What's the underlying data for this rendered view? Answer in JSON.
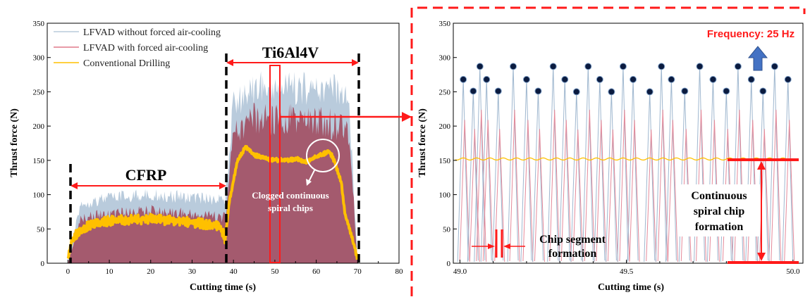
{
  "chart_data": [
    {
      "type": "line",
      "panel": "left",
      "xlabel": "Cutting time (s)",
      "ylabel": "Thrust force (N)",
      "xlim": [
        -5,
        80
      ],
      "ylim": [
        0,
        350
      ],
      "xticks": [
        "0",
        "10",
        "20",
        "30",
        "40",
        "50",
        "60",
        "70",
        "80"
      ],
      "yticks": [
        "0",
        "50",
        "100",
        "150",
        "200",
        "250",
        "300",
        "350"
      ],
      "legend_position": "top-left",
      "series": [
        {
          "name": "LFVAD without forced air-cooling",
          "color": "#b9cbdc",
          "x": [
            0,
            3,
            10,
            20,
            30,
            38,
            40,
            45,
            50,
            60,
            66,
            68,
            70
          ],
          "upper": [
            0,
            95,
            105,
            110,
            105,
            100,
            255,
            280,
            282,
            280,
            275,
            250,
            0
          ]
        },
        {
          "name": "LFVAD with forced air-cooling",
          "color": "#a45a6e",
          "x": [
            0,
            3,
            10,
            20,
            30,
            38,
            40,
            45,
            50,
            60,
            66,
            68,
            70
          ],
          "upper": [
            0,
            75,
            80,
            85,
            80,
            75,
            215,
            235,
            235,
            232,
            228,
            210,
            0
          ]
        },
        {
          "name": "Conventional Drilling",
          "color": "#ffc000",
          "x": [
            0,
            1,
            3,
            5,
            10,
            15,
            20,
            25,
            30,
            35,
            37,
            38,
            39,
            41,
            43,
            45,
            48,
            52,
            55,
            58,
            60,
            62,
            63,
            64,
            66,
            67,
            69,
            70
          ],
          "y": [
            5,
            35,
            48,
            55,
            62,
            63,
            65,
            62,
            60,
            55,
            52,
            35,
            90,
            150,
            170,
            158,
            152,
            150,
            152,
            148,
            155,
            160,
            164,
            155,
            120,
            70,
            30,
            5
          ]
        }
      ],
      "regions": [
        {
          "label": "CFRP",
          "x_start": 0,
          "x_end": 38
        },
        {
          "label": "Ti6Al4V",
          "x_start": 38,
          "x_end": 70.5
        }
      ],
      "annotations": [
        "Clogged continuous",
        "spiral chips"
      ]
    },
    {
      "type": "line",
      "panel": "right",
      "xlabel": "Cutting time (s)",
      "ylabel": "Thrust force (N)",
      "xlim": [
        48.98,
        50.03
      ],
      "ylim": [
        0,
        350
      ],
      "xticks": [
        "49.0",
        "49.5",
        "50.0"
      ],
      "yticks": [
        "0",
        "50",
        "100",
        "150",
        "200",
        "250",
        "300",
        "350"
      ],
      "frequency_label": "Frequency: 25 Hz",
      "peaks": {
        "x": [
          49.01,
          49.04,
          49.06,
          49.08,
          49.115,
          49.16,
          49.2,
          49.235,
          49.28,
          49.315,
          49.35,
          49.385,
          49.42,
          49.455,
          49.49,
          49.52,
          49.57,
          49.605,
          49.635,
          49.675,
          49.72,
          49.76,
          49.8,
          49.835,
          49.875,
          49.91,
          49.945,
          49.985
        ],
        "y": [
          268,
          251,
          287,
          268,
          251,
          287,
          268,
          251,
          287,
          268,
          250,
          287,
          268,
          250,
          287,
          268,
          250,
          287,
          268,
          251,
          287,
          268,
          251,
          287,
          268,
          251,
          287,
          268
        ]
      },
      "conventional_level": 152,
      "annotations": [
        "Chip segment",
        "formation",
        "Continuous",
        "spiral chip",
        "formation"
      ]
    }
  ]
}
